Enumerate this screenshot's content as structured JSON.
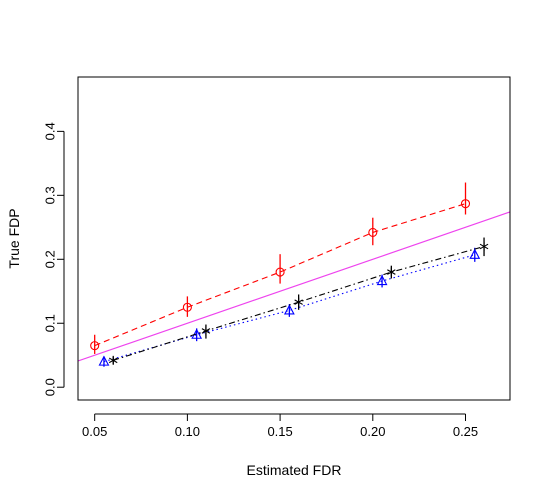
{
  "chart_data": {
    "type": "scatter",
    "title": "",
    "xlabel": "Estimated FDR",
    "ylabel": "True FDP",
    "xlim": [
      0.041,
      0.274
    ],
    "ylim": [
      -0.02,
      0.485
    ],
    "xticks": [
      0.05,
      0.1,
      0.15,
      0.2,
      0.25
    ],
    "xtick_labels": [
      "0.05",
      "0.10",
      "0.15",
      "0.20",
      "0.25"
    ],
    "yticks": [
      0.0,
      0.1,
      0.2,
      0.3,
      0.4
    ],
    "ytick_labels": [
      "0.0",
      "0.1",
      "0.2",
      "0.3",
      "0.4"
    ],
    "grid": false,
    "legend": "none",
    "series": [
      {
        "marker": "circle",
        "line_style": "dashed",
        "color": "#ff0000",
        "x": [
          0.05,
          0.1,
          0.15,
          0.2,
          0.25
        ],
        "y": [
          0.065,
          0.125,
          0.18,
          0.242,
          0.287
        ],
        "err_low": [
          0.052,
          0.11,
          0.162,
          0.222,
          0.27
        ],
        "err_high": [
          0.082,
          0.142,
          0.208,
          0.265,
          0.32
        ]
      },
      {
        "marker": "triangle",
        "line_style": "dotted",
        "color": "#0000ff",
        "x": [
          0.055,
          0.105,
          0.155,
          0.205,
          0.255
        ],
        "y": [
          0.04,
          0.082,
          0.12,
          0.166,
          0.207
        ],
        "err_low": [
          0.032,
          0.072,
          0.11,
          0.156,
          0.196
        ],
        "err_high": [
          0.048,
          0.092,
          0.13,
          0.176,
          0.218
        ]
      },
      {
        "marker": "asterisk",
        "line_style": "dashdot",
        "color": "#000000",
        "x": [
          0.06,
          0.11,
          0.16,
          0.21,
          0.26
        ],
        "y": [
          0.042,
          0.088,
          0.133,
          0.18,
          0.22
        ],
        "err_low": [
          0.036,
          0.076,
          0.121,
          0.17,
          0.205
        ],
        "err_high": [
          0.048,
          0.098,
          0.145,
          0.19,
          0.234
        ]
      }
    ],
    "reference_line": {
      "color": "#ee44ee",
      "intercept": 0.0,
      "slope": 1.0
    }
  }
}
